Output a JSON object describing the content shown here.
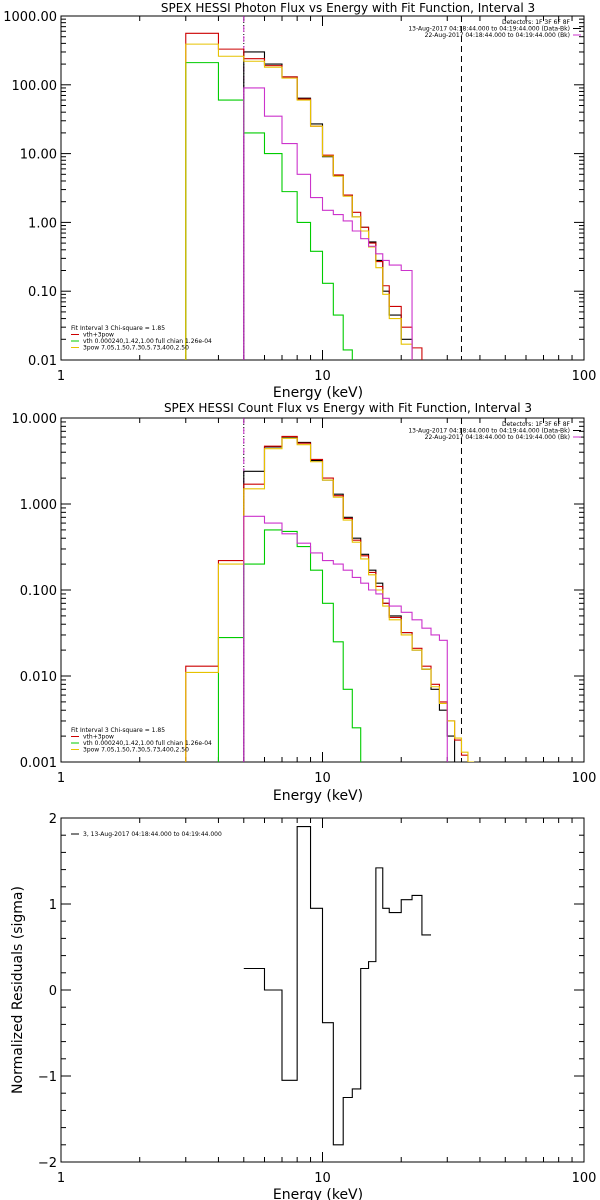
{
  "chart_data": [
    {
      "type": "line",
      "title": "SPEX HESSI Photon Flux vs Energy with Fit Function, Interval 3",
      "xlabel": "Energy (keV)",
      "ylabel": "",
      "xscale": "log",
      "yscale": "log",
      "xlim": [
        1,
        100
      ],
      "ylim": [
        0.01,
        1000
      ],
      "xticks": [
        {
          "v": 1,
          "label": "1"
        },
        {
          "v": 10,
          "label": "10"
        },
        {
          "v": 100,
          "label": "100"
        }
      ],
      "yticks": [
        {
          "v": 0.01,
          "label": "0.01"
        },
        {
          "v": 0.1,
          "label": "0.10"
        },
        {
          "v": 1,
          "label": "1.00"
        },
        {
          "v": 10,
          "label": "10.00"
        },
        {
          "v": 100,
          "label": "100.00"
        },
        {
          "v": 1000,
          "label": "1000.00"
        }
      ],
      "vlines": [
        {
          "x": 5,
          "style": "dotted",
          "color": "#000000"
        },
        {
          "x": 5,
          "style": "dashed",
          "color": "#cc33cc"
        },
        {
          "x": 34,
          "style": "dashed",
          "color": "#000000"
        }
      ],
      "header_lines": [
        "Detectors: 1F 3F 6F 8F",
        "13-Aug-2017 04:18:44.000 to 04:19:44.000 (Data-Bk)",
        "22-Aug-2017 04:18:44.000 to 04:19:44.000 (Bk)"
      ],
      "header_swatches": [
        "#000000",
        "#cc33cc"
      ],
      "legend_lines": [
        {
          "text": "Fit Interval 3   Chi-square = 1.85",
          "color": ""
        },
        {
          "text": "vth+3pow",
          "color": "#cc0000"
        },
        {
          "text": "vth 0.000240,1.42,1.00  full chian 1.26e-04",
          "color": "#00cc00"
        },
        {
          "text": "3pow 7.05,1.50,7.30,5.73,400,2.50",
          "color": "#e6c200"
        }
      ],
      "edges": [
        3,
        4,
        5,
        6,
        7,
        8,
        9,
        10,
        11,
        12,
        13,
        14,
        15,
        16,
        17,
        18,
        20,
        22,
        24,
        26,
        28,
        30,
        32,
        34,
        36,
        38
      ],
      "series": [
        {
          "color": "#000000",
          "values": [
            null,
            null,
            300,
            200,
            130,
            64,
            27,
            9,
            4.8,
            2.5,
            1.2,
            0.85,
            0.52,
            0.28,
            0.1,
            0.045,
            0.02,
            null,
            null,
            null,
            null,
            null,
            null,
            null,
            null
          ]
        },
        {
          "color": "#cc0000",
          "values": [
            560,
            330,
            240,
            190,
            130,
            62,
            25,
            9.5,
            4.9,
            2.5,
            1.4,
            0.85,
            0.5,
            0.27,
            0.12,
            0.06,
            0.03,
            0.015,
            null,
            null,
            null,
            null,
            null,
            null,
            null
          ]
        },
        {
          "color": "#00cc00",
          "values": [
            210,
            60,
            20,
            10,
            2.8,
            1.0,
            0.38,
            0.13,
            0.045,
            0.014,
            null,
            null,
            null,
            null,
            null,
            null,
            null,
            null,
            null,
            null,
            null,
            null,
            null,
            null,
            null
          ]
        },
        {
          "color": "#e6c200",
          "values": [
            390,
            260,
            220,
            180,
            125,
            60,
            25,
            9.2,
            4.7,
            2.4,
            1.2,
            0.75,
            0.44,
            0.22,
            0.09,
            0.04,
            0.017,
            null,
            null,
            null,
            null,
            null,
            null,
            null,
            null
          ]
        },
        {
          "color": "#cc33cc",
          "values": [
            null,
            null,
            90,
            35,
            14,
            5.0,
            2.3,
            1.5,
            1.3,
            1.05,
            0.75,
            0.58,
            0.45,
            0.35,
            0.28,
            0.24,
            0.2,
            null,
            null,
            null,
            null,
            null,
            null,
            null,
            null
          ]
        }
      ]
    },
    {
      "type": "line",
      "title": "SPEX HESSI Count Flux vs Energy with Fit Function, Interval 3",
      "xlabel": "Energy (keV)",
      "ylabel": "",
      "xscale": "log",
      "yscale": "log",
      "xlim": [
        1,
        100
      ],
      "ylim": [
        0.001,
        10
      ],
      "xticks": [
        {
          "v": 1,
          "label": "1"
        },
        {
          "v": 10,
          "label": "10"
        },
        {
          "v": 100,
          "label": "100"
        }
      ],
      "yticks": [
        {
          "v": 0.001,
          "label": "0.001"
        },
        {
          "v": 0.01,
          "label": "0.010"
        },
        {
          "v": 0.1,
          "label": "0.100"
        },
        {
          "v": 1,
          "label": "1.000"
        },
        {
          "v": 10,
          "label": "10.000"
        }
      ],
      "vlines": [
        {
          "x": 5,
          "style": "dotted",
          "color": "#000000"
        },
        {
          "x": 5,
          "style": "dashed",
          "color": "#cc33cc"
        },
        {
          "x": 34,
          "style": "dashed",
          "color": "#000000"
        }
      ],
      "header_lines": [
        "Detectors: 1F 3F 6F 8F",
        "13-Aug-2017 04:18:44.000 to 04:19:44.000 (Data-Bk)",
        "22-Aug-2017 04:18:44.000 to 04:19:44.000 (Bk)"
      ],
      "header_swatches": [
        "#000000",
        "#cc33cc"
      ],
      "legend_lines": [
        {
          "text": "Fit Interval 3   Chi-square = 1.85",
          "color": ""
        },
        {
          "text": "vth+3pow",
          "color": "#cc0000"
        },
        {
          "text": "vth 0.000240,1.42,1.00  full chian 1.26e-04",
          "color": "#00cc00"
        },
        {
          "text": "3pow 7.05,1.50,7.30,5.73,400,2.50",
          "color": "#e6c200"
        }
      ],
      "edges": [
        3,
        4,
        5,
        6,
        7,
        8,
        9,
        10,
        11,
        12,
        13,
        14,
        15,
        16,
        17,
        18,
        20,
        22,
        24,
        26,
        28,
        30,
        32,
        34,
        36,
        38,
        40
      ],
      "series": [
        {
          "color": "#000000",
          "values": [
            null,
            null,
            2.4,
            4.6,
            6.0,
            5.2,
            3.2,
            1.9,
            1.3,
            0.7,
            0.4,
            0.26,
            0.17,
            0.12,
            0.07,
            0.05,
            0.032,
            0.02,
            0.012,
            0.007,
            0.004,
            0.002,
            null,
            null,
            null,
            null
          ]
        },
        {
          "color": "#cc0000",
          "values": [
            0.013,
            0.22,
            1.7,
            4.7,
            6.1,
            5.1,
            3.3,
            2.0,
            1.25,
            0.68,
            0.38,
            0.25,
            0.16,
            0.11,
            0.07,
            0.048,
            0.032,
            0.021,
            0.013,
            0.008,
            0.005,
            0.003,
            0.0018,
            0.0012,
            null,
            null
          ]
        },
        {
          "color": "#00cc00",
          "values": [
            null,
            0.028,
            0.2,
            0.5,
            0.48,
            0.32,
            0.17,
            0.07,
            0.025,
            0.007,
            0.0025,
            null,
            null,
            null,
            null,
            null,
            null,
            null,
            null,
            null,
            null,
            null,
            null,
            null,
            null,
            null
          ]
        },
        {
          "color": "#e6c200",
          "values": [
            0.011,
            0.2,
            1.5,
            4.4,
            5.8,
            4.9,
            3.1,
            1.9,
            1.2,
            0.65,
            0.36,
            0.23,
            0.15,
            0.1,
            0.065,
            0.045,
            0.03,
            0.02,
            0.012,
            0.0075,
            0.0048,
            0.003,
            0.0019,
            0.0013,
            0.001,
            null
          ]
        },
        {
          "color": "#cc33cc",
          "values": [
            null,
            null,
            0.72,
            0.6,
            0.45,
            0.35,
            0.27,
            0.22,
            0.2,
            0.17,
            0.14,
            0.12,
            0.1,
            0.09,
            0.08,
            0.065,
            0.055,
            0.045,
            0.036,
            0.03,
            0.026,
            null,
            null,
            null,
            null,
            null
          ]
        }
      ]
    },
    {
      "type": "line",
      "title": "",
      "xlabel": "Energy (keV)",
      "ylabel": "Normalized Residuals (sigma)",
      "xscale": "log",
      "yscale": "linear",
      "xlim": [
        1,
        100
      ],
      "ylim": [
        -2,
        2
      ],
      "xticks": [
        {
          "v": 1,
          "label": "1"
        },
        {
          "v": 10,
          "label": "10"
        },
        {
          "v": 100,
          "label": "100"
        }
      ],
      "yticks": [
        {
          "v": -2,
          "label": "−2"
        },
        {
          "v": -1,
          "label": "−1"
        },
        {
          "v": 0,
          "label": "0"
        },
        {
          "v": 1,
          "label": "1"
        },
        {
          "v": 2,
          "label": "2"
        }
      ],
      "legend_lines": [
        {
          "text": "3, 13-Aug-2017 04:18:44.000 to 04:19:44.000",
          "color": "#000000"
        }
      ],
      "edges": [
        5,
        6,
        7,
        8,
        9,
        10,
        11,
        12,
        13,
        14,
        15,
        16,
        17,
        18,
        20,
        22,
        24,
        26,
        28,
        30,
        32,
        34
      ],
      "series": [
        {
          "color": "#000000",
          "values": [
            0.25,
            0.0,
            -1.05,
            1.9,
            0.95,
            -0.38,
            -1.8,
            -1.25,
            -1.15,
            0.25,
            0.33,
            1.42,
            0.95,
            0.9,
            1.05,
            1.1,
            0.64,
            null,
            null,
            null,
            null
          ]
        }
      ]
    }
  ]
}
